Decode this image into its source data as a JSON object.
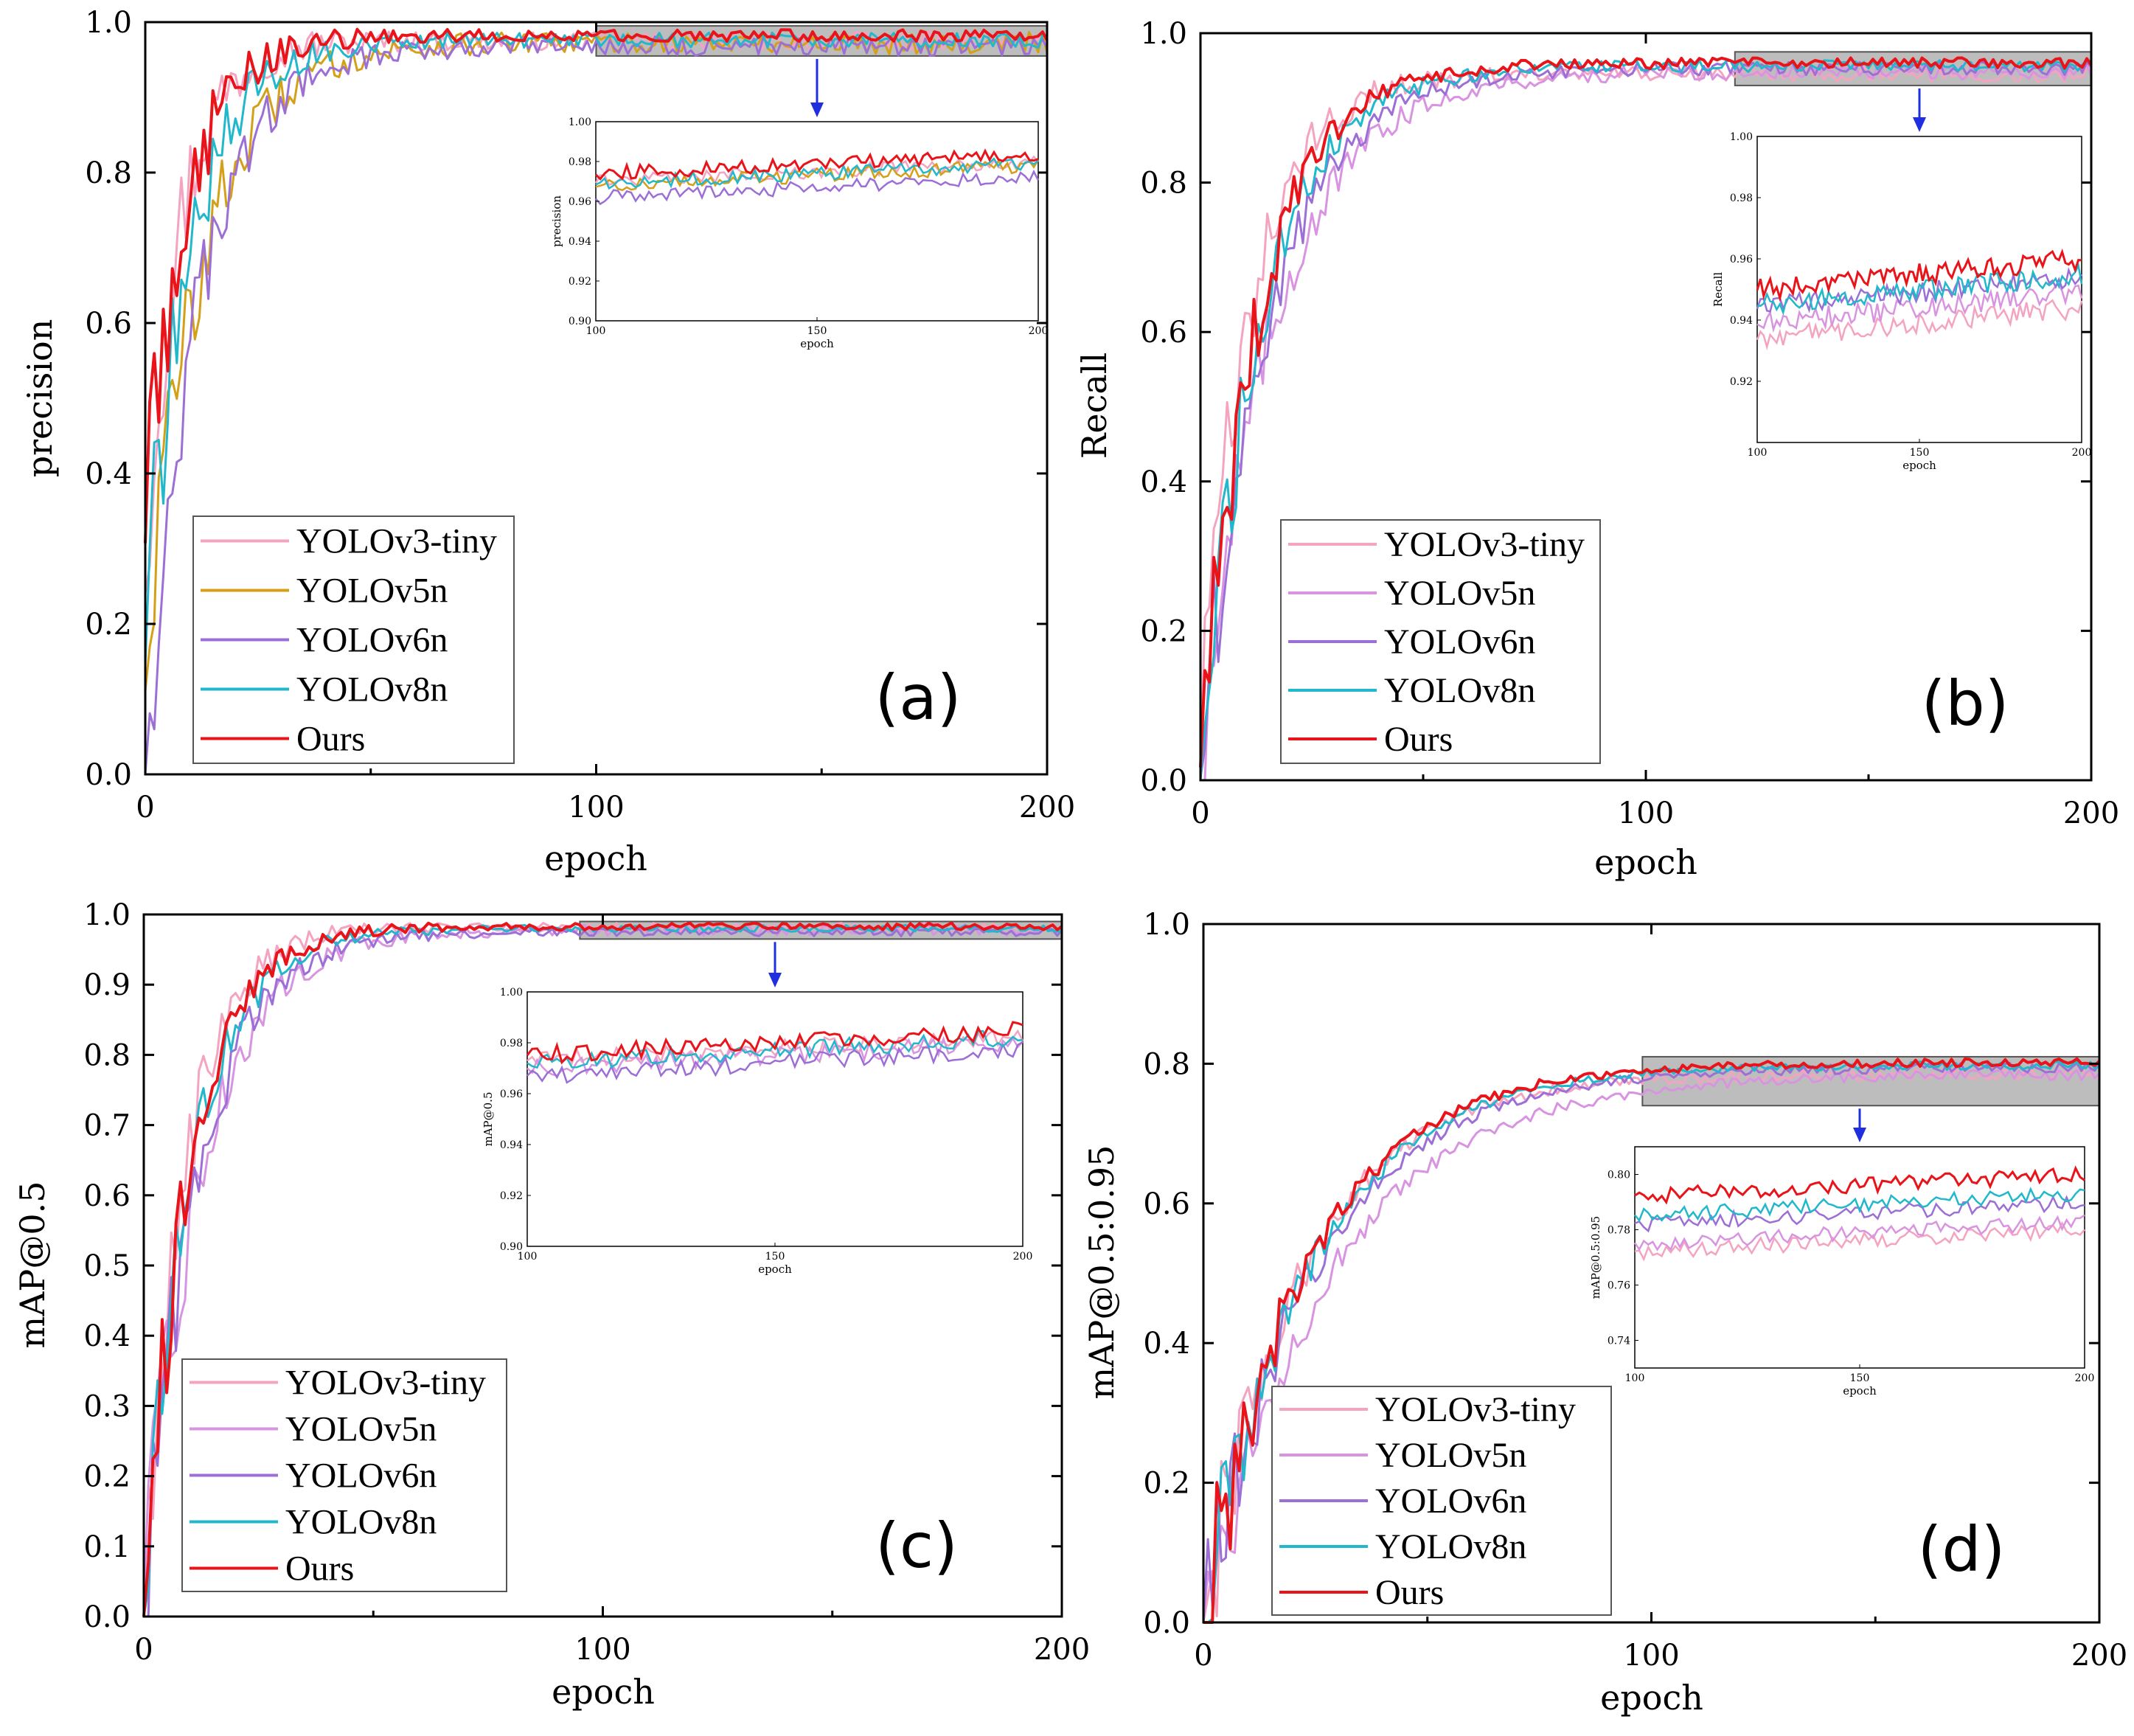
{
  "figure_colors": {
    "YOLOv3-tiny": "#f4a3c0",
    "YOLOv5n_a": "#d4a017",
    "YOLOv5n_other": "#d894e0",
    "YOLOv6n": "#9c6fd6",
    "YOLOv8n": "#22b8cc",
    "Ours": "#e8141a",
    "highlight_fill": "#bdbdbd",
    "arrow": "#1f2fe0"
  },
  "chart_data": [
    {
      "id": "a",
      "type": "line",
      "panel_label": "(a)",
      "xlabel": "epoch",
      "ylabel": "precision",
      "xlim": [
        0,
        200
      ],
      "ylim": [
        0,
        1.0
      ],
      "xticks": [
        0,
        100,
        200
      ],
      "xtick_labels": [
        "0",
        "100",
        "200"
      ],
      "yticks": [
        0,
        0.2,
        0.4,
        0.6,
        0.8,
        1.0
      ],
      "ytick_labels": [
        "0.0",
        "0.2",
        "0.4",
        "0.6",
        "0.8",
        "1.0"
      ],
      "highlight_x": [
        100,
        200
      ],
      "highlight_y": [
        0.955,
        0.995
      ],
      "series": [
        {
          "name": "YOLOv3-tiny",
          "color_key": "YOLOv3-tiny",
          "start": 0.3,
          "end": 0.975,
          "rate": 0.13,
          "noise": 0.012,
          "inset_end": 0.98
        },
        {
          "name": "YOLOv5n",
          "color_key": "YOLOv5n_a",
          "start": 0.17,
          "end": 0.972,
          "rate": 0.08,
          "noise": 0.015,
          "inset_end": 0.978
        },
        {
          "name": "YOLOv6n",
          "color_key": "YOLOv6n",
          "start": 0.02,
          "end": 0.968,
          "rate": 0.085,
          "noise": 0.013,
          "inset_end": 0.972
        },
        {
          "name": "YOLOv8n",
          "color_key": "YOLOv8n",
          "start": 0.2,
          "end": 0.976,
          "rate": 0.1,
          "noise": 0.01,
          "inset_end": 0.979
        },
        {
          "name": "Ours",
          "color_key": "Ours",
          "start": 0.36,
          "end": 0.982,
          "rate": 0.11,
          "noise": 0.008,
          "inset_end": 0.984
        }
      ],
      "inset": {
        "xlabel": "epoch",
        "ylabel": "precision",
        "xlim": [
          100,
          200
        ],
        "ylim": [
          0.9,
          1.0
        ],
        "xtick_labels": [
          "100",
          "150",
          "200"
        ],
        "ytick_labels": [
          "0.90",
          "0.92",
          "0.94",
          "0.96",
          "0.98",
          "1.00"
        ]
      }
    },
    {
      "id": "b",
      "type": "line",
      "panel_label": "(b)",
      "xlabel": "epoch",
      "ylabel": "Recall",
      "xlim": [
        0,
        200
      ],
      "ylim": [
        0,
        1.0
      ],
      "xticks": [
        0,
        100,
        200
      ],
      "xtick_labels": [
        "0",
        "100",
        "200"
      ],
      "yticks": [
        0,
        0.2,
        0.4,
        0.6,
        0.8,
        1.0
      ],
      "ytick_labels": [
        "0.0",
        "0.2",
        "0.4",
        "0.6",
        "0.8",
        "1.0"
      ],
      "highlight_x": [
        120,
        200
      ],
      "highlight_y": [
        0.93,
        0.975
      ],
      "series": [
        {
          "name": "YOLOv3-tiny",
          "color_key": "YOLOv3-tiny",
          "start": 0.05,
          "end": 0.945,
          "rate": 0.09,
          "noise": 0.01,
          "inset_end": 0.944
        },
        {
          "name": "YOLOv5n",
          "color_key": "YOLOv5n_other",
          "start": 0.04,
          "end": 0.948,
          "rate": 0.06,
          "noise": 0.01,
          "inset_end": 0.949
        },
        {
          "name": "YOLOv6n",
          "color_key": "YOLOv6n",
          "start": 0.05,
          "end": 0.953,
          "rate": 0.065,
          "noise": 0.009,
          "inset_end": 0.954
        },
        {
          "name": "YOLOv8n",
          "color_key": "YOLOv8n",
          "start": 0.03,
          "end": 0.956,
          "rate": 0.072,
          "noise": 0.008,
          "inset_end": 0.955
        },
        {
          "name": "Ours",
          "color_key": "Ours",
          "start": 0.06,
          "end": 0.96,
          "rate": 0.075,
          "noise": 0.007,
          "inset_end": 0.96
        }
      ],
      "inset": {
        "xlabel": "epoch",
        "ylabel": "Recall",
        "xlim": [
          100,
          200
        ],
        "ylim": [
          0.9,
          1.0
        ],
        "xtick_labels": [
          "100",
          "150",
          "200"
        ],
        "ytick_labels": [
          "0.92",
          "0.94",
          "0.96",
          "0.98",
          "1.00"
        ]
      }
    },
    {
      "id": "c",
      "type": "line",
      "panel_label": "(c)",
      "xlabel": "epoch",
      "ylabel": "mAP@0.5",
      "xlim": [
        0,
        200
      ],
      "ylim": [
        0,
        1.0
      ],
      "xticks": [
        0,
        100,
        200
      ],
      "xtick_labels": [
        "0",
        "100",
        "200"
      ],
      "yticks": [
        0,
        0.1,
        0.2,
        0.3,
        0.4,
        0.5,
        0.6,
        0.7,
        0.8,
        0.9,
        1.0
      ],
      "ytick_labels": [
        "0.0",
        "0.1",
        "0.2",
        "0.3",
        "0.4",
        "0.5",
        "0.6",
        "0.7",
        "0.8",
        "0.9",
        "1.0"
      ],
      "highlight_x": [
        95,
        200
      ],
      "highlight_y": [
        0.965,
        0.99
      ],
      "series": [
        {
          "name": "YOLOv3-tiny",
          "color_key": "YOLOv3-tiny",
          "start": 0.05,
          "end": 0.982,
          "rate": 0.11,
          "noise": 0.006,
          "inset_end": 0.983
        },
        {
          "name": "YOLOv5n",
          "color_key": "YOLOv5n_other",
          "start": 0.03,
          "end": 0.978,
          "rate": 0.08,
          "noise": 0.008,
          "inset_end": 0.98
        },
        {
          "name": "YOLOv6n",
          "color_key": "YOLOv6n",
          "start": 0.02,
          "end": 0.975,
          "rate": 0.085,
          "noise": 0.006,
          "inset_end": 0.977
        },
        {
          "name": "YOLOv8n",
          "color_key": "YOLOv8n",
          "start": 0.02,
          "end": 0.98,
          "rate": 0.095,
          "noise": 0.005,
          "inset_end": 0.982
        },
        {
          "name": "Ours",
          "color_key": "Ours",
          "start": 0.01,
          "end": 0.983,
          "rate": 0.1,
          "noise": 0.005,
          "inset_end": 0.985
        }
      ],
      "inset": {
        "xlabel": "epoch",
        "ylabel": "mAP@0.5",
        "xlim": [
          100,
          200
        ],
        "ylim": [
          0.9,
          1.0
        ],
        "xtick_labels": [
          "100",
          "150",
          "200"
        ],
        "ytick_labels": [
          "0.90",
          "0.92",
          "0.94",
          "0.96",
          "0.98",
          "1.00"
        ]
      }
    },
    {
      "id": "d",
      "type": "line",
      "panel_label": "(d)",
      "xlabel": "epoch",
      "ylabel": "mAP@0.5:0.95",
      "xlim": [
        0,
        200
      ],
      "ylim": [
        0,
        1.0
      ],
      "xticks": [
        0,
        100,
        200
      ],
      "xtick_labels": [
        "0",
        "100",
        "200"
      ],
      "yticks": [
        0,
        0.2,
        0.4,
        0.6,
        0.8,
        1.0
      ],
      "ytick_labels": [
        "0.0",
        "0.2",
        "0.4",
        "0.6",
        "0.8",
        "1.0"
      ],
      "highlight_x": [
        98,
        200
      ],
      "highlight_y": [
        0.74,
        0.81
      ],
      "series": [
        {
          "name": "YOLOv3-tiny",
          "color_key": "YOLOv3-tiny",
          "start": 0.01,
          "end": 0.785,
          "rate": 0.045,
          "noise": 0.008,
          "inset_end": 0.78
        },
        {
          "name": "YOLOv5n",
          "color_key": "YOLOv5n_other",
          "start": 0.01,
          "end": 0.785,
          "rate": 0.035,
          "noise": 0.008,
          "inset_end": 0.783
        },
        {
          "name": "YOLOv6n",
          "color_key": "YOLOv6n",
          "start": 0.01,
          "end": 0.795,
          "rate": 0.04,
          "noise": 0.007,
          "inset_end": 0.79
        },
        {
          "name": "YOLOv8n",
          "color_key": "YOLOv8n",
          "start": 0.01,
          "end": 0.798,
          "rate": 0.042,
          "noise": 0.006,
          "inset_end": 0.793
        },
        {
          "name": "Ours",
          "color_key": "Ours",
          "start": 0.01,
          "end": 0.802,
          "rate": 0.043,
          "noise": 0.006,
          "inset_end": 0.8
        }
      ],
      "inset": {
        "xlabel": "epoch",
        "ylabel": "mAP@0.5:0.95",
        "xlim": [
          100,
          200
        ],
        "ylim": [
          0.73,
          0.81
        ],
        "xtick_labels": [
          "100",
          "150",
          "200"
        ],
        "ytick_labels": [
          "0.74",
          "0.76",
          "0.78",
          "0.80"
        ]
      }
    }
  ]
}
